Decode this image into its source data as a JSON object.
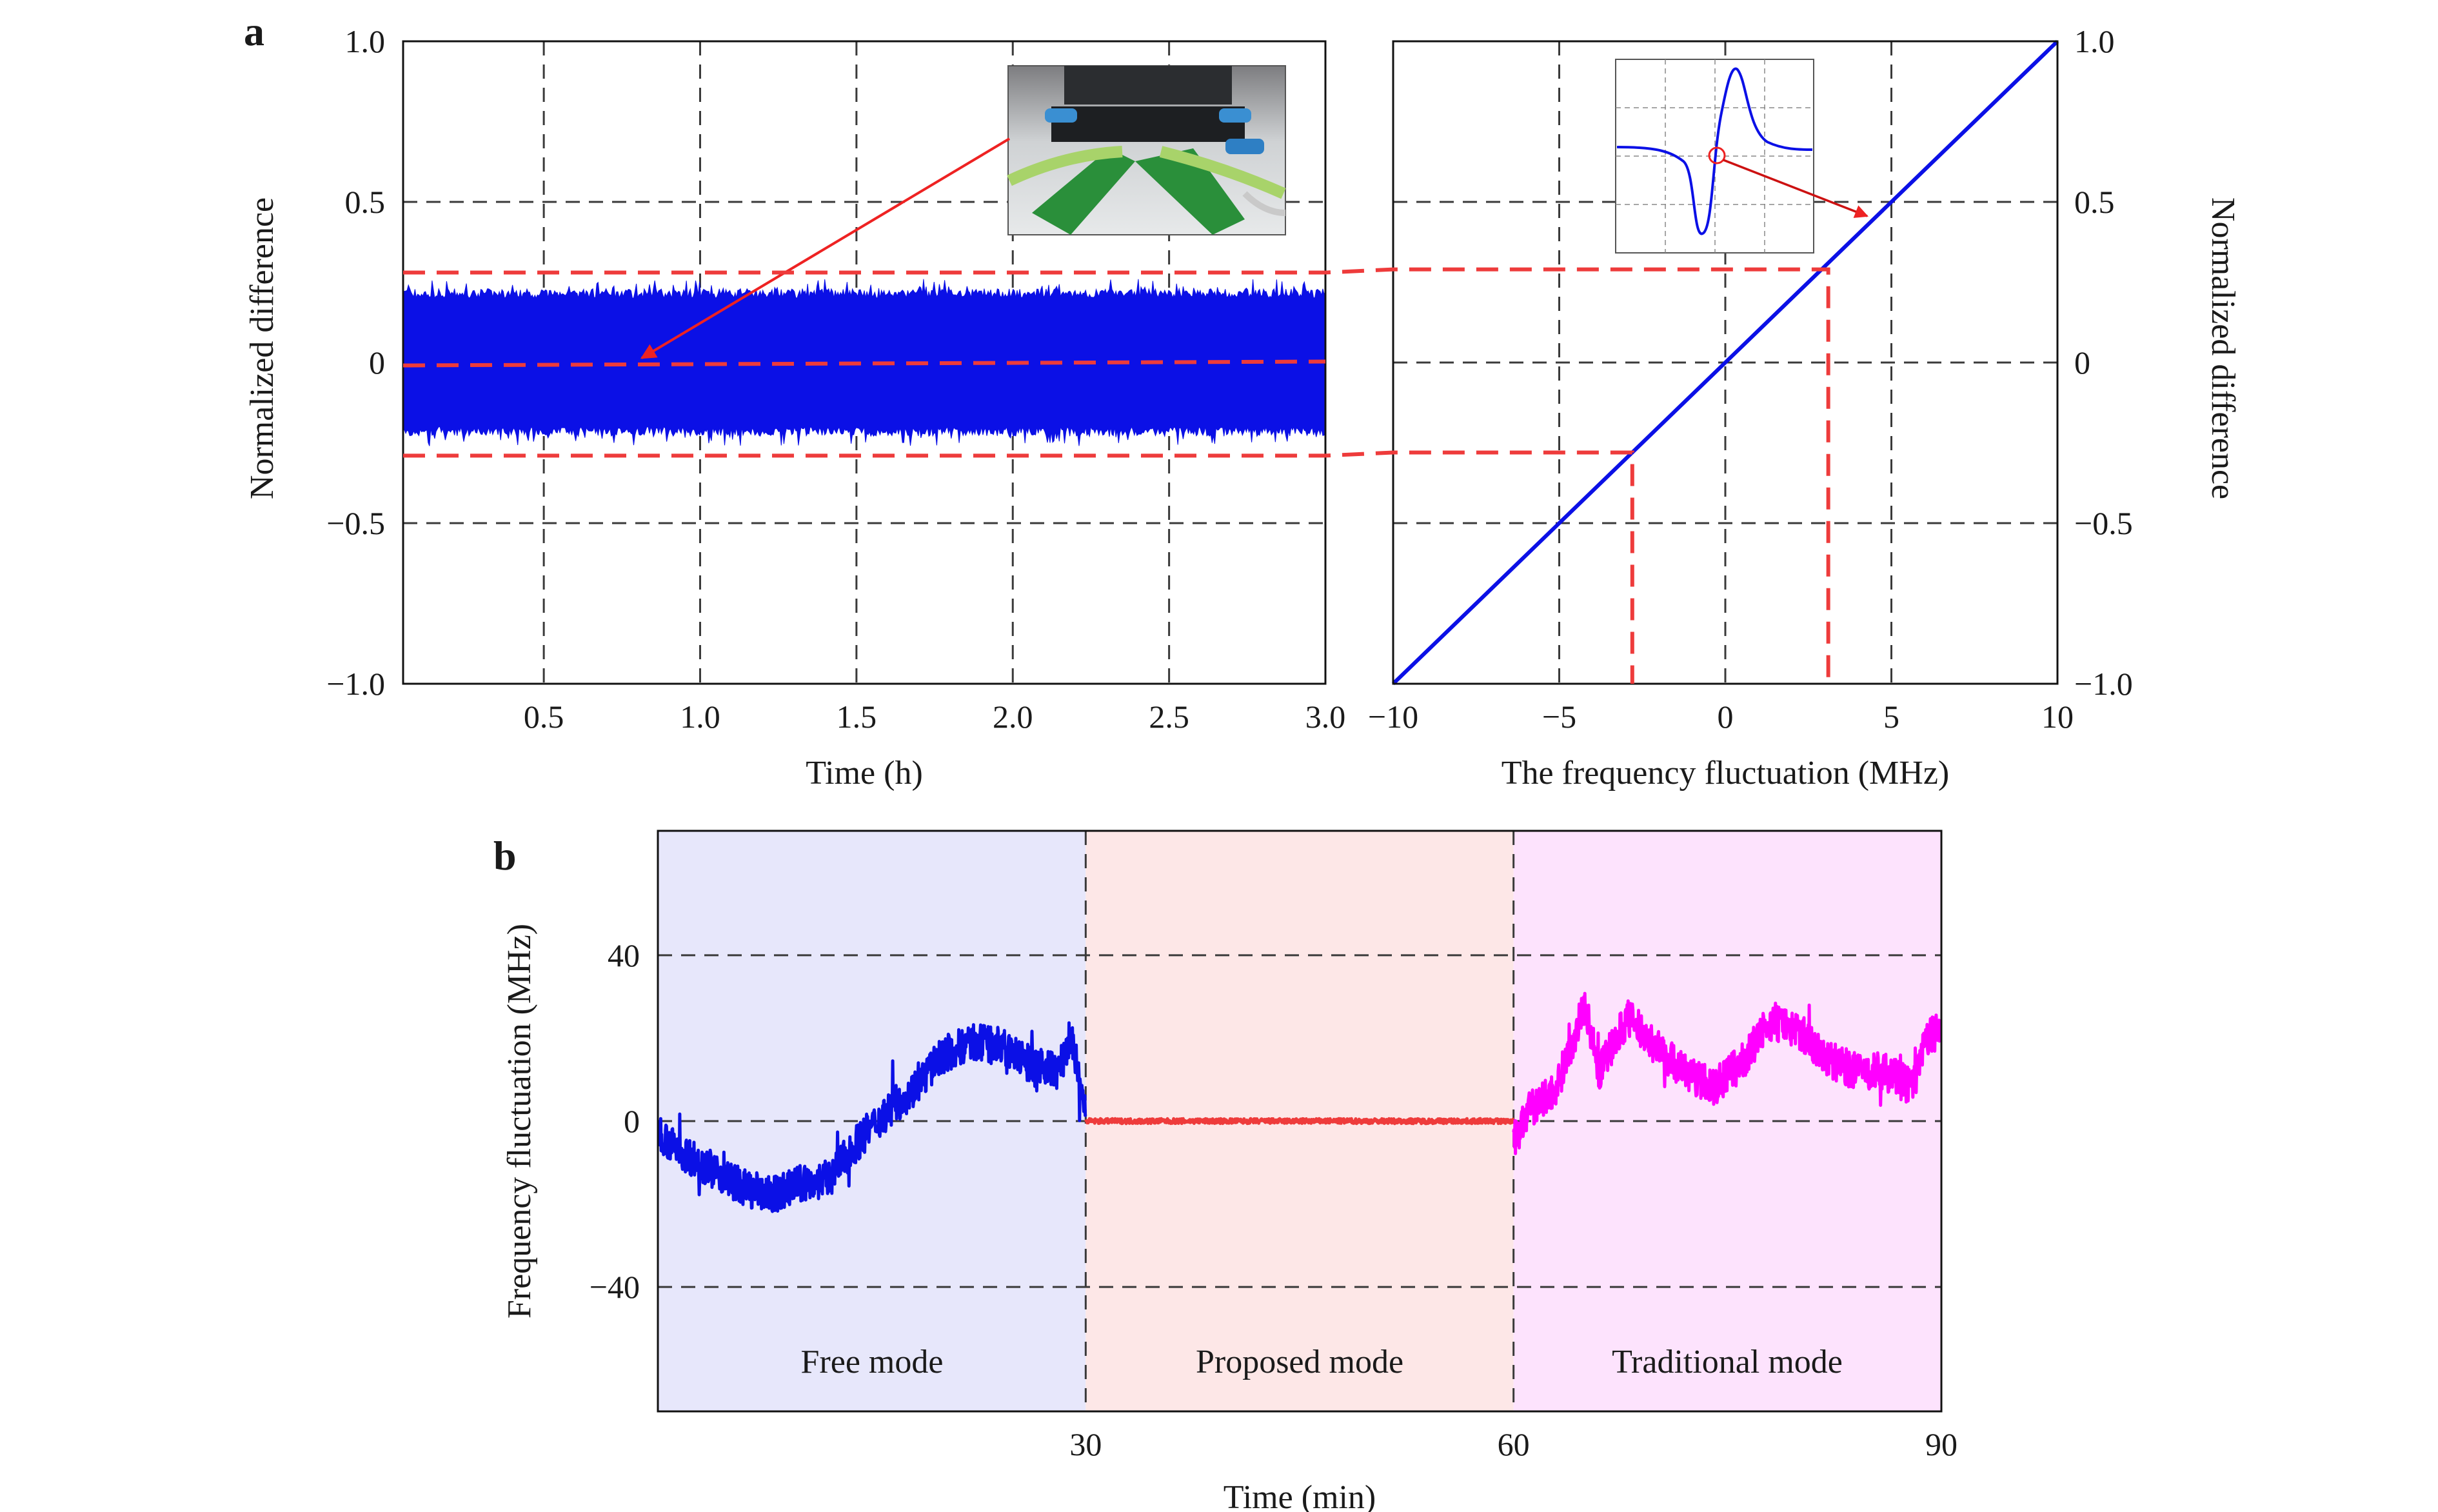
{
  "figure": {
    "panel_a_label": "a",
    "panel_b_label": "b"
  },
  "colors": {
    "signal": "#0b10e6",
    "guide": "#ee3b3b",
    "magenta": "#ff00ff",
    "free_bg": "#e7e7fb",
    "proposed_bg": "#fde7e7",
    "traditional_bg": "#fde3fd",
    "grid": "#3a3a3a"
  },
  "chart_data": [
    {
      "id": "a-left",
      "type": "area",
      "xlabel": "Time (h)",
      "ylabel": "Normalized difference",
      "xlim": [
        0.05,
        3.0
      ],
      "ylim": [
        -1.0,
        1.0
      ],
      "xticks": [
        0.5,
        1.0,
        1.5,
        2.0,
        2.5,
        3.0
      ],
      "xtick_labels": [
        "0.5",
        "1.0",
        "1.5",
        "2.0",
        "2.5",
        "3.0"
      ],
      "yticks": [
        1.0,
        0.5,
        0,
        -0.5,
        -1.0
      ],
      "ytick_labels": [
        "1.0",
        "0.5",
        "0",
        "−0.5",
        "−1.0"
      ],
      "grid": true,
      "series": [
        {
          "band_upper": 0.2,
          "band_lower": -0.2,
          "peak_upper": 0.26,
          "peak_lower": -0.26
        }
      ],
      "guide_levels": [
        0.28,
        -0.005,
        -0.29
      ],
      "inset": "photo of the sensor assembly with an arrow to the zero level"
    },
    {
      "id": "a-right",
      "type": "line",
      "xlabel": "The frequency fluctuation (MHz)",
      "ylabel": "Normalized difference",
      "xlim": [
        -10,
        10
      ],
      "ylim": [
        -1.0,
        1.0
      ],
      "xticks": [
        -10,
        -5,
        0,
        5,
        10
      ],
      "xtick_labels": [
        "−10",
        "−5",
        "0",
        "5",
        "10"
      ],
      "yticks": [
        1.0,
        0.5,
        0,
        -0.5,
        -1.0
      ],
      "ytick_labels": [
        "1.0",
        "0.5",
        "0",
        "−0.5",
        "−1.0"
      ],
      "grid": true,
      "series": [
        {
          "x": [
            -10,
            10
          ],
          "y": [
            -1.0,
            1.0
          ]
        }
      ],
      "guide_points": [
        {
          "x": 3.1,
          "y": 0.29
        },
        {
          "x": -2.8,
          "y": -0.28
        }
      ],
      "inset": "dispersion (error signal) curve with an arrow to the linear region"
    },
    {
      "id": "b",
      "type": "line",
      "xlabel": "Time (min)",
      "ylabel": "Frequency fluctuation (MHz)",
      "xlim": [
        0,
        90
      ],
      "ylim": [
        -70,
        70
      ],
      "xticks": [
        30,
        60,
        90
      ],
      "xtick_labels": [
        "30",
        "60",
        "90"
      ],
      "yticks": [
        40,
        0,
        -40
      ],
      "ytick_labels": [
        "40",
        "0",
        "−40"
      ],
      "grid": true,
      "regions": [
        {
          "label": "Free mode",
          "x": [
            0,
            30
          ]
        },
        {
          "label": "Proposed mode",
          "x": [
            30,
            60
          ]
        },
        {
          "label": "Traditional mode",
          "x": [
            60,
            90
          ]
        }
      ],
      "series": [
        {
          "x": [
            0,
            1,
            2,
            4,
            6,
            8,
            10,
            12,
            14,
            16,
            18,
            20,
            22,
            24,
            26,
            28,
            29,
            30
          ],
          "y": [
            -2,
            -6,
            -8,
            -12,
            -16,
            -18,
            -15,
            -14,
            -5,
            2,
            8,
            16,
            19,
            18,
            14,
            12,
            20,
            2
          ]
        },
        {
          "x": [
            30,
            45,
            60
          ],
          "y": [
            0,
            0,
            0
          ]
        },
        {
          "x": [
            60,
            61,
            63,
            65,
            66,
            68,
            70,
            72,
            74,
            76,
            78,
            80,
            82,
            84,
            86,
            88,
            89,
            90
          ],
          "y": [
            -5,
            2,
            8,
            28,
            12,
            25,
            18,
            12,
            8,
            14,
            24,
            22,
            15,
            12,
            12,
            8,
            20,
            22
          ]
        }
      ]
    }
  ]
}
